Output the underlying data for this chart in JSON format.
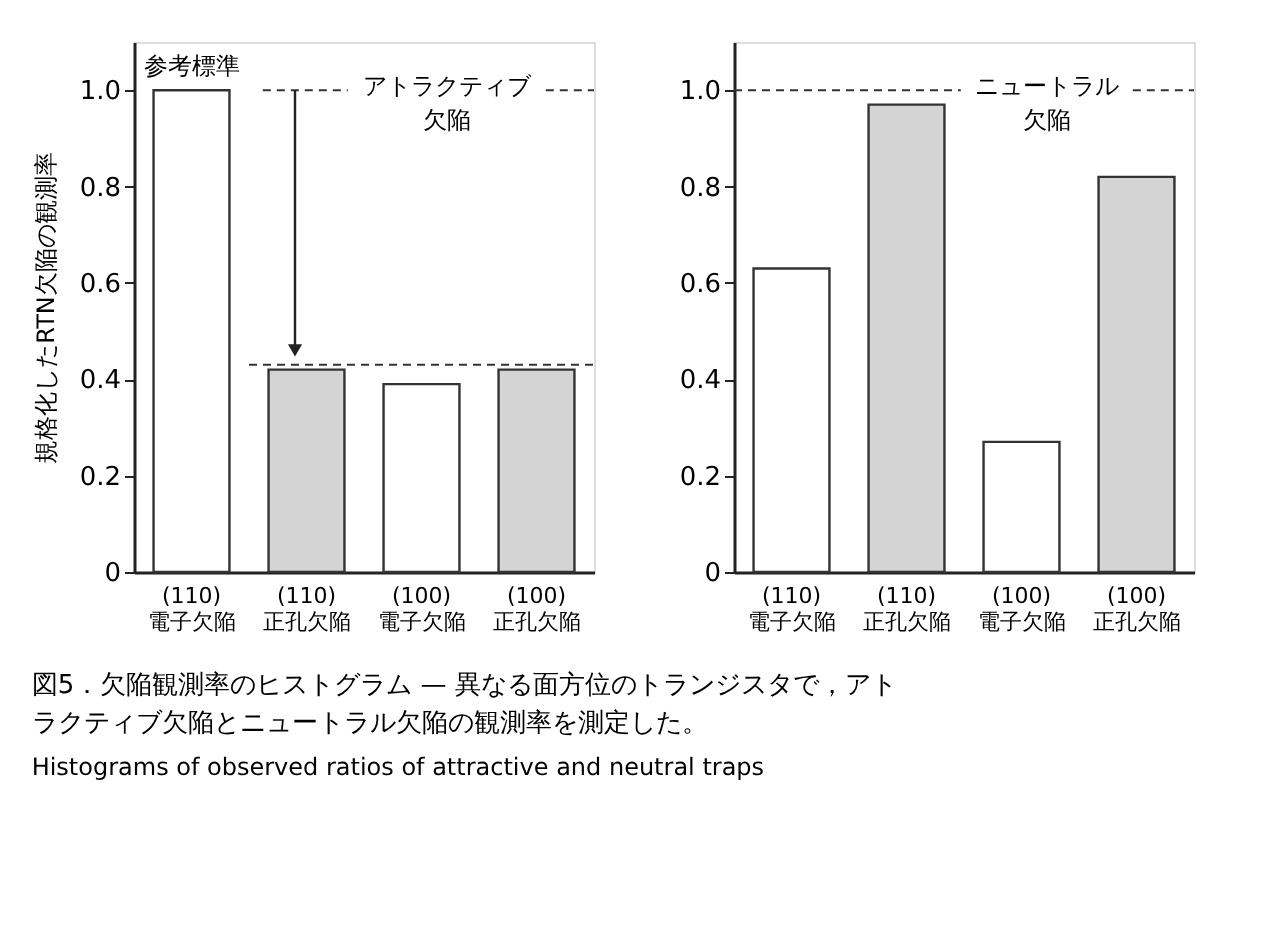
{
  "chart_data": [
    {
      "type": "bar",
      "ylabel": "規格化したRTN欠陥の観測率",
      "categories": [
        "(110)\n電子欠陥",
        "(110)\n正孔欠陥",
        "(100)\n電子欠陥",
        "(100)\n正孔欠陥"
      ],
      "values": [
        1.0,
        0.42,
        0.39,
        0.42
      ],
      "colors": [
        "#ffffff",
        "#d4d4d4",
        "#ffffff",
        "#d4d4d4"
      ],
      "ylim": [
        0,
        1.1
      ],
      "yticks": [
        0,
        0.2,
        0.4,
        0.6,
        0.8,
        {
          "value": 1.0,
          "label": "1.0"
        }
      ],
      "ref_lines": [
        {
          "axis": "y",
          "value": 1.0,
          "label": "アトラクティブ欠陥",
          "line_style": "dashed"
        },
        {
          "axis": "y",
          "value": 0.43,
          "line_style": "dashed"
        }
      ],
      "annotations": [
        "参考標準",
        "図5．欠陥観測率のヒストグラム — 異なる面方位のトランジスタで，アトラクティブ欠陥とニュートラル欠陥の観測率を測定した。",
        "Histograms of observed ratios of attractive and neutral traps"
      ],
      "grid": false
    },
    {
      "type": "bar",
      "categories": [
        "(110)\n電子欠陥",
        "(110)\n正孔欠陥",
        "(100)\n電子欠陥",
        "(100)\n正孔欠陥"
      ],
      "values": [
        0.63,
        0.97,
        0.27,
        0.82
      ],
      "colors": [
        "#ffffff",
        "#d4d4d4",
        "#ffffff",
        "#d4d4d4"
      ],
      "ylim": [
        0,
        1.1
      ],
      "yticks": [
        0,
        0.2,
        0.4,
        0.6,
        0.8,
        {
          "value": 1.0,
          "label": "1.0"
        }
      ],
      "ref_lines": [
        {
          "axis": "y",
          "value": 1.0,
          "label": "ニュートラル欠陥",
          "line_style": "dashed"
        }
      ],
      "grid": false
    }
  ]
}
